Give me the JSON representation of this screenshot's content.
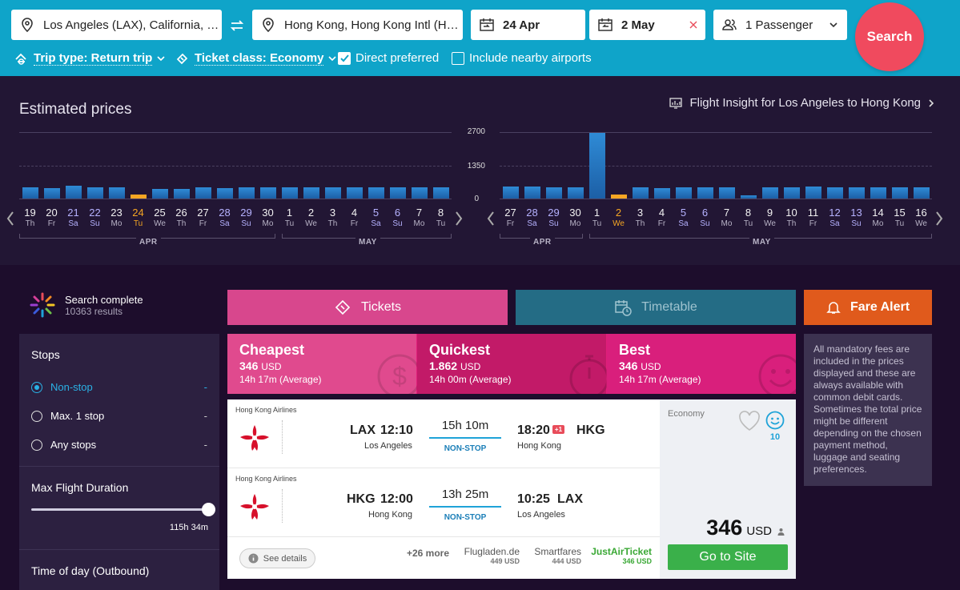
{
  "search": {
    "from": "Los Angeles (LAX), California, U...",
    "to": "Hong Kong, Hong Kong Intl (HK...",
    "depart": "24 Apr",
    "return": "2 May",
    "passengers": "1 Passenger",
    "search_label": "Search",
    "trip_type": "Trip type: Return trip",
    "ticket_class": "Ticket class: Economy",
    "direct_preferred": "Direct preferred",
    "nearby_airports": "Include nearby airports"
  },
  "prices": {
    "title": "Estimated prices",
    "insight": "Flight Insight for Los Angeles to Hong Kong",
    "y_ticks": [
      "2700",
      "1350",
      "0"
    ],
    "outbound": {
      "days": [
        {
          "d": "19",
          "w": "Th",
          "v": 460
        },
        {
          "d": "20",
          "w": "Fr",
          "v": 420
        },
        {
          "d": "21",
          "w": "Sa",
          "v": 520
        },
        {
          "d": "22",
          "w": "Su",
          "v": 470
        },
        {
          "d": "23",
          "w": "Mo",
          "v": 470
        },
        {
          "d": "24",
          "w": "Tu",
          "v": 170
        },
        {
          "d": "25",
          "w": "We",
          "v": 400
        },
        {
          "d": "26",
          "w": "Th",
          "v": 400
        },
        {
          "d": "27",
          "w": "Fr",
          "v": 470
        },
        {
          "d": "28",
          "w": "Sa",
          "v": 410
        },
        {
          "d": "29",
          "w": "Su",
          "v": 470
        },
        {
          "d": "30",
          "w": "Mo",
          "v": 470
        },
        {
          "d": "1",
          "w": "Tu",
          "v": 460
        },
        {
          "d": "2",
          "w": "We",
          "v": 470
        },
        {
          "d": "3",
          "w": "Th",
          "v": 470
        },
        {
          "d": "4",
          "w": "Fr",
          "v": 470
        },
        {
          "d": "5",
          "w": "Sa",
          "v": 470
        },
        {
          "d": "6",
          "w": "Su",
          "v": 470
        },
        {
          "d": "7",
          "w": "Mo",
          "v": 470
        },
        {
          "d": "8",
          "w": "Tu",
          "v": 460
        }
      ],
      "selected_index": 5,
      "months": [
        "APR",
        "MAY"
      ]
    },
    "inbound": {
      "days": [
        {
          "d": "27",
          "w": "Fr",
          "v": 500
        },
        {
          "d": "28",
          "w": "Sa",
          "v": 490
        },
        {
          "d": "29",
          "w": "Su",
          "v": 440
        },
        {
          "d": "30",
          "w": "Mo",
          "v": 460
        },
        {
          "d": "1",
          "w": "Tu",
          "v": 2660
        },
        {
          "d": "2",
          "w": "We",
          "v": 170
        },
        {
          "d": "3",
          "w": "Th",
          "v": 470
        },
        {
          "d": "4",
          "w": "Fr",
          "v": 430
        },
        {
          "d": "5",
          "w": "Sa",
          "v": 470
        },
        {
          "d": "6",
          "w": "Su",
          "v": 470
        },
        {
          "d": "7",
          "w": "Mo",
          "v": 470
        },
        {
          "d": "8",
          "w": "Tu",
          "v": 140
        },
        {
          "d": "9",
          "w": "We",
          "v": 470
        },
        {
          "d": "10",
          "w": "Th",
          "v": 470
        },
        {
          "d": "11",
          "w": "Fr",
          "v": 500
        },
        {
          "d": "12",
          "w": "Sa",
          "v": 470
        },
        {
          "d": "13",
          "w": "Su",
          "v": 470
        },
        {
          "d": "14",
          "w": "Mo",
          "v": 470
        },
        {
          "d": "15",
          "w": "Tu",
          "v": 470
        },
        {
          "d": "16",
          "w": "We",
          "v": 470
        }
      ],
      "selected_index": 5,
      "months": [
        "APR",
        "MAY"
      ]
    }
  },
  "results": {
    "complete": "Search complete",
    "count": "10363 results",
    "tabs": {
      "tickets": "Tickets",
      "timetable": "Timetable",
      "fare_alert": "Fare Alert"
    },
    "filters": {
      "stops_title": "Stops",
      "stops": [
        {
          "label": "Non-stop",
          "value": "-"
        },
        {
          "label": "Max. 1 stop",
          "value": "-"
        },
        {
          "label": "Any stops",
          "value": "-"
        }
      ],
      "duration_title": "Max Flight Duration",
      "duration_value": "115h 34m",
      "duration_fraction": 1.0,
      "time_title": "Time of day (Outbound)"
    },
    "sort": [
      {
        "title": "Cheapest",
        "price": "346",
        "cur": "USD",
        "avg": "14h 17m (Average)"
      },
      {
        "title": "Quickest",
        "price": "1.862",
        "cur": "USD",
        "avg": "14h 00m (Average)"
      },
      {
        "title": "Best",
        "price": "346",
        "cur": "USD",
        "avg": "14h 17m (Average)"
      }
    ],
    "flight": {
      "legs": [
        {
          "airline": "Hong Kong Airlines",
          "from_code": "LAX",
          "dep": "12:10",
          "from_city": "Los Angeles",
          "duration": "15h 10m",
          "stops": "NON-STOP",
          "arr": "18:20",
          "plus": "+1",
          "to_code": "HKG",
          "to_city": "Hong Kong"
        },
        {
          "airline": "Hong Kong Airlines",
          "from_code": "HKG",
          "dep": "12:00",
          "from_city": "Hong Kong",
          "duration": "13h 25m",
          "stops": "NON-STOP",
          "arr": "10:25",
          "plus": "",
          "to_code": "LAX",
          "to_city": "Los Angeles"
        }
      ],
      "details": "See details",
      "more": "+26 more",
      "agents": [
        {
          "name": "Flugladen.de",
          "price": "449 USD"
        },
        {
          "name": "Smartfares",
          "price": "444 USD"
        },
        {
          "name": "JustAirTicket",
          "price": "346 USD"
        }
      ],
      "cabin": "Economy",
      "score": "10",
      "price": "346",
      "currency": "USD",
      "cta": "Go to Site"
    },
    "notice": "All mandatory fees are included in the prices displayed and these are always available with common debit cards. Sometimes the total price might be different depending on the chosen payment method, luggage and seating preferences."
  }
}
